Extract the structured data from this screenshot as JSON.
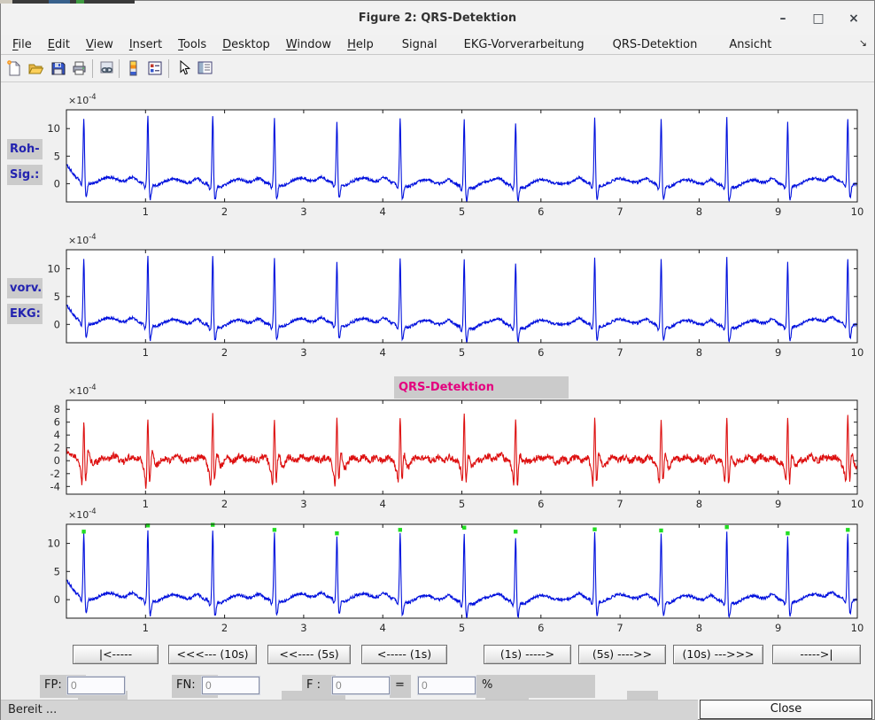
{
  "colors": {
    "signal_blue": "#0010dd",
    "signal_red": "#dd1010",
    "marker_green": "#22dd22",
    "label_blue": "#2323b0",
    "title_magenta": "#e4007f",
    "panel_gray": "#cbcbcb",
    "figure_bg": "#f0f0f0"
  },
  "window": {
    "title": "Figure 2: QRS-Detektion",
    "minimize": "–",
    "maximize": "□",
    "close": "×",
    "menu_overflow": "↘"
  },
  "menu": {
    "items": [
      {
        "label": "File",
        "underline_first": true
      },
      {
        "label": "Edit",
        "underline_first": true
      },
      {
        "label": "View",
        "underline_first": true
      },
      {
        "label": "Insert",
        "underline_first": true
      },
      {
        "label": "Tools",
        "underline_first": true
      },
      {
        "label": "Desktop",
        "underline_first": true
      },
      {
        "label": "Window",
        "underline_first": true
      },
      {
        "label": "Help",
        "underline_first": true
      },
      {
        "label": "Signal",
        "underline_first": false
      },
      {
        "label": "EKG-Vorverarbeitung",
        "underline_first": false
      },
      {
        "label": "QRS-Detektion",
        "underline_first": false
      },
      {
        "label": "Ansicht",
        "underline_first": false
      }
    ]
  },
  "toolbar": {
    "icons": [
      "new-document",
      "open-folder",
      "save",
      "print",
      "link-plot",
      "colorbar",
      "insert-legend",
      "pointer",
      "property-editor"
    ]
  },
  "nav_buttons": [
    "|<-----",
    "<<<--- (10s)",
    "<<---- (5s)",
    "<----- (1s)",
    "(1s) ----->",
    "(5s) ---->>",
    "(10s) --->>>",
    "----->|"
  ],
  "fields": {
    "fp_label": "FP:",
    "fp_value": "0",
    "fn_label": "FN:",
    "fn_value": "0",
    "f_label": "F :",
    "f_value": "0",
    "equals": "=",
    "result_value": "0",
    "percent": "%"
  },
  "status": {
    "text": "Bereit ...",
    "close_label": "Close"
  },
  "chart_data": {
    "type": "line",
    "xlim": [
      0,
      10
    ],
    "xticks": [
      1,
      2,
      3,
      4,
      5,
      6,
      7,
      8,
      9,
      10
    ],
    "x_unit": "s",
    "beats_sec": [
      0.22,
      1.03,
      1.85,
      2.63,
      3.42,
      4.22,
      5.03,
      5.68,
      6.68,
      7.52,
      8.35,
      9.12,
      9.88
    ],
    "r_peak_amplitudes_e4": [
      11.6,
      12.7,
      12.8,
      11.9,
      11.3,
      11.9,
      12.3,
      11.6,
      12.0,
      11.8,
      12.4,
      11.3,
      11.9
    ],
    "plots": [
      {
        "name": "raw-ecg",
        "type": "line",
        "kind": "ecg",
        "side_label": [
          "Roh-",
          "Sig.:"
        ],
        "color": "#0010dd",
        "exp_mult": "×10",
        "exp_power": "-4",
        "yticks": [
          0,
          5,
          10
        ],
        "ylim": [
          -3.3,
          13.4
        ]
      },
      {
        "name": "preprocessed-ecg",
        "type": "line",
        "kind": "ecg",
        "side_label": [
          "vorv.",
          "EKG:"
        ],
        "color": "#0010dd",
        "exp_mult": "×10",
        "exp_power": "-4",
        "yticks": [
          0,
          5,
          10
        ],
        "ylim": [
          -3.3,
          13.4
        ]
      },
      {
        "name": "qrs-detection-function",
        "type": "line",
        "kind": "filtered",
        "title": "QRS-Detektion",
        "title_color": "#e4007f",
        "color": "#dd1010",
        "exp_mult": "×10",
        "exp_power": "-4",
        "yticks": [
          -4,
          -2,
          0,
          2,
          4,
          6,
          8
        ],
        "ylim": [
          -5.2,
          9.4
        ]
      },
      {
        "name": "ecg-with-detections",
        "type": "line",
        "kind": "ecg",
        "color": "#0010dd",
        "exp_mult": "×10",
        "exp_power": "-4",
        "yticks": [
          0,
          5,
          10
        ],
        "ylim": [
          -3.3,
          13.4
        ],
        "markers": {
          "color": "#22dd22",
          "shape": "square",
          "at": "r-peaks"
        }
      }
    ]
  }
}
